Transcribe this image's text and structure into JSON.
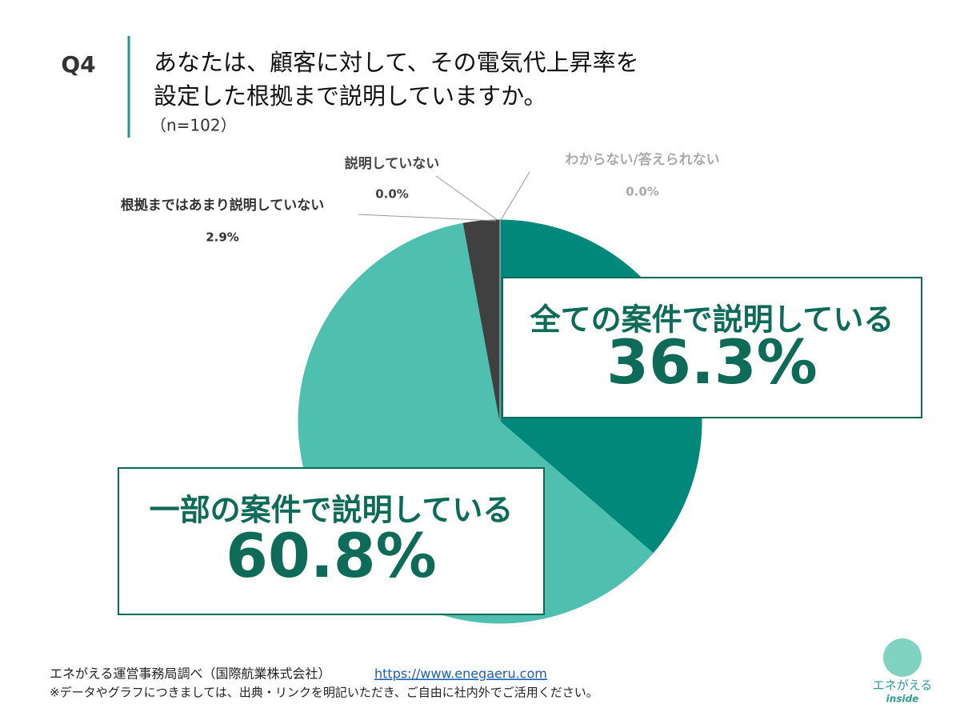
{
  "chart_data": {
    "type": "pie",
    "question": "Q4",
    "title": [
      "あなたは、顧客に対して、その電気代上昇率を",
      "設定した根拠まで説明していますか。"
    ],
    "subtitle": "（n=102）",
    "categories": [
      "全ての案件で説明している",
      "一部の案件で説明している",
      "根拠まではあまり説明していない",
      "説明していない",
      "わからない/答えられない"
    ],
    "values": [
      36.3,
      60.8,
      2.9,
      0.0,
      0.0
    ],
    "value_labels": [
      "36.3%",
      "60.8%",
      "2.9%",
      "0.0%",
      "0.0%"
    ],
    "colors": [
      "#00897b",
      "#4fbfb0",
      "#404040",
      "#9e9e9e",
      "#c8c8c8"
    ]
  },
  "footer": {
    "source": "エネがえる運営事務局調べ（国際航業株式会社）",
    "link": "https://www.enegaeru.com",
    "note": "※データやグラフにつきましては、出典・リンクを明記いただき、ご自由に社内外でご活用ください。"
  },
  "logo": {
    "name": "エネがえる",
    "sub": "inside"
  }
}
